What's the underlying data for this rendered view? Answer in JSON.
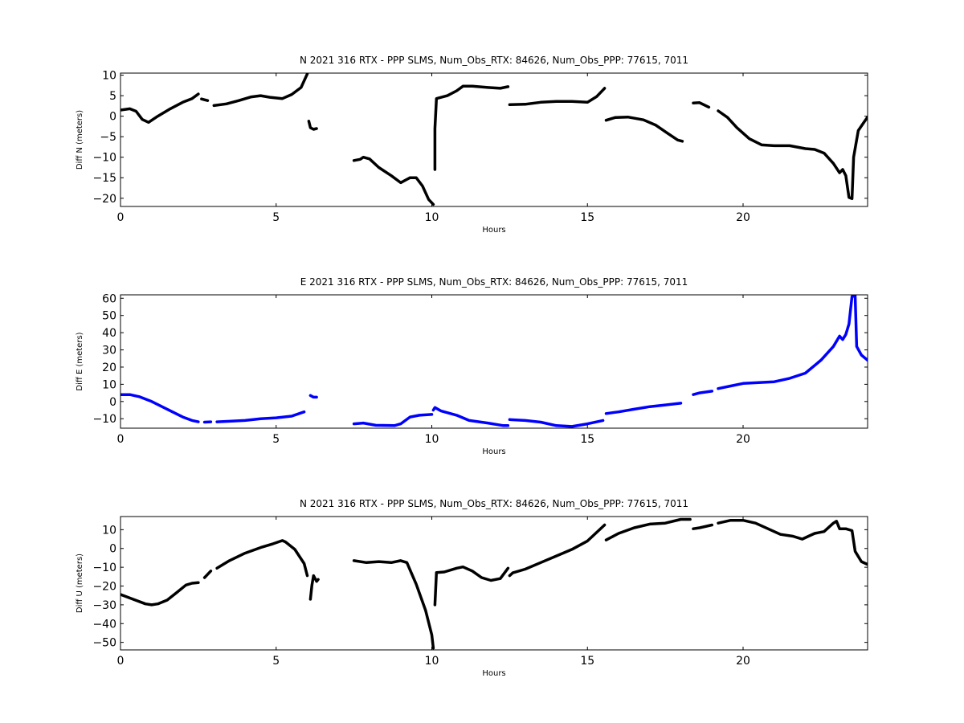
{
  "chart_data": [
    {
      "type": "scatter",
      "title": "N 2021 316 RTX - PPP  SLMS, Num_Obs_RTX: 84626, Num_Obs_PPP: 77615, 7011",
      "xlabel": "Hours",
      "ylabel": "Diff N (meters)",
      "xlim": [
        0,
        24
      ],
      "ylim": [
        -22,
        10.5
      ],
      "xticks": [
        0,
        5,
        10,
        15,
        20
      ],
      "yticks": [
        10,
        5,
        0,
        -5,
        -10,
        -15,
        -20
      ],
      "grid": false,
      "color": "#000000",
      "segments": [
        [
          [
            0,
            1.5
          ],
          [
            0.3,
            1.8
          ],
          [
            0.5,
            1.2
          ],
          [
            0.7,
            -0.8
          ],
          [
            0.9,
            -1.5
          ],
          [
            1.2,
            0
          ],
          [
            1.6,
            1.8
          ],
          [
            2.0,
            3.4
          ],
          [
            2.3,
            4.3
          ],
          [
            2.5,
            5.4
          ]
        ],
        [
          [
            2.6,
            4.2
          ],
          [
            2.8,
            3.8
          ]
        ],
        [
          [
            3.0,
            2.6
          ],
          [
            3.4,
            3.0
          ],
          [
            3.8,
            3.8
          ],
          [
            4.2,
            4.7
          ],
          [
            4.5,
            5.0
          ],
          [
            4.8,
            4.6
          ],
          [
            5.2,
            4.3
          ],
          [
            5.5,
            5.3
          ],
          [
            5.8,
            7.0
          ],
          [
            6.0,
            10.3
          ]
        ],
        [
          [
            6.05,
            -1.2
          ],
          [
            6.1,
            -2.8
          ],
          [
            6.2,
            -3.2
          ],
          [
            6.3,
            -3.0
          ]
        ],
        [
          [
            7.5,
            -10.8
          ],
          [
            7.7,
            -10.5
          ],
          [
            7.8,
            -10.0
          ],
          [
            8.0,
            -10.4
          ],
          [
            8.3,
            -12.5
          ],
          [
            8.7,
            -14.5
          ],
          [
            9.0,
            -16.2
          ],
          [
            9.3,
            -15.0
          ],
          [
            9.5,
            -15.0
          ],
          [
            9.7,
            -17.0
          ],
          [
            9.9,
            -20.3
          ],
          [
            10.05,
            -21.5
          ]
        ],
        [
          [
            10.1,
            -13.0
          ],
          [
            10.1,
            -3.0
          ],
          [
            10.15,
            4.3
          ],
          [
            10.5,
            5.0
          ],
          [
            10.8,
            6.2
          ],
          [
            11.0,
            7.3
          ],
          [
            11.3,
            7.3
          ],
          [
            11.8,
            7.0
          ],
          [
            12.2,
            6.8
          ],
          [
            12.45,
            7.2
          ]
        ],
        [
          [
            12.5,
            2.8
          ],
          [
            13.0,
            2.9
          ],
          [
            13.5,
            3.4
          ],
          [
            14.0,
            3.6
          ],
          [
            14.5,
            3.6
          ],
          [
            15.0,
            3.4
          ],
          [
            15.3,
            4.8
          ],
          [
            15.55,
            6.8
          ]
        ],
        [
          [
            15.6,
            -1.0
          ],
          [
            15.9,
            -0.3
          ],
          [
            16.3,
            -0.2
          ],
          [
            16.8,
            -0.9
          ],
          [
            17.2,
            -2.2
          ],
          [
            17.6,
            -4.3
          ],
          [
            17.9,
            -5.8
          ],
          [
            18.05,
            -6.1
          ]
        ],
        [
          [
            18.4,
            3.2
          ],
          [
            18.6,
            3.3
          ],
          [
            18.9,
            2.2
          ]
        ],
        [
          [
            19.2,
            1.3
          ],
          [
            19.5,
            -0.3
          ],
          [
            19.8,
            -2.8
          ],
          [
            20.2,
            -5.5
          ],
          [
            20.6,
            -7.0
          ],
          [
            21.0,
            -7.2
          ],
          [
            21.5,
            -7.2
          ],
          [
            22.0,
            -7.9
          ],
          [
            22.3,
            -8.1
          ],
          [
            22.6,
            -9.0
          ],
          [
            22.9,
            -11.5
          ],
          [
            23.1,
            -13.8
          ],
          [
            23.2,
            -13.0
          ],
          [
            23.3,
            -14.5
          ],
          [
            23.4,
            -19.8
          ],
          [
            23.5,
            -20.1
          ],
          [
            23.55,
            -10.0
          ],
          [
            23.7,
            -3.5
          ],
          [
            23.9,
            -1.3
          ],
          [
            24.0,
            -0.2
          ]
        ]
      ]
    },
    {
      "type": "scatter",
      "title": "E 2021 316 RTX - PPP  SLMS, Num_Obs_RTX: 84626, Num_Obs_PPP: 77615, 7011",
      "xlabel": "Hours",
      "ylabel": "Diff E (meters)",
      "xlim": [
        0,
        24
      ],
      "ylim": [
        -15.5,
        62
      ],
      "xticks": [
        0,
        5,
        10,
        15,
        20
      ],
      "yticks": [
        60,
        50,
        40,
        30,
        20,
        10,
        0,
        -10
      ],
      "grid": false,
      "color": "#0000ff",
      "segments": [
        [
          [
            0,
            4.0
          ],
          [
            0.3,
            4.0
          ],
          [
            0.6,
            2.8
          ],
          [
            1.0,
            0
          ],
          [
            1.5,
            -4.5
          ],
          [
            2.0,
            -9.0
          ],
          [
            2.3,
            -11.0
          ],
          [
            2.5,
            -11.8
          ]
        ],
        [
          [
            2.7,
            -12.0
          ],
          [
            2.9,
            -11.8
          ]
        ],
        [
          [
            3.1,
            -11.8
          ],
          [
            3.5,
            -11.5
          ],
          [
            4.0,
            -11.0
          ],
          [
            4.5,
            -10.0
          ],
          [
            5.0,
            -9.5
          ],
          [
            5.5,
            -8.5
          ],
          [
            5.9,
            -6.0
          ]
        ],
        [
          [
            6.1,
            3.5
          ],
          [
            6.2,
            2.5
          ],
          [
            6.3,
            2.5
          ]
        ],
        [
          [
            7.5,
            -13.0
          ],
          [
            7.8,
            -12.5
          ],
          [
            8.2,
            -13.8
          ],
          [
            8.8,
            -14.0
          ],
          [
            9.0,
            -13.0
          ],
          [
            9.3,
            -9.0
          ],
          [
            9.6,
            -8.0
          ],
          [
            10.0,
            -7.5
          ]
        ],
        [
          [
            10.05,
            -5.0
          ],
          [
            10.1,
            -3.5
          ],
          [
            10.3,
            -5.5
          ],
          [
            10.8,
            -8.0
          ],
          [
            11.2,
            -11.0
          ],
          [
            11.8,
            -12.5
          ],
          [
            12.3,
            -14.0
          ],
          [
            12.45,
            -14.0
          ]
        ],
        [
          [
            12.5,
            -10.5
          ],
          [
            13.0,
            -11.0
          ],
          [
            13.5,
            -12.0
          ],
          [
            14.0,
            -14.0
          ],
          [
            14.5,
            -14.5
          ],
          [
            15.0,
            -13.0
          ],
          [
            15.5,
            -11.0
          ]
        ],
        [
          [
            15.6,
            -7.0
          ],
          [
            16.0,
            -6.0
          ],
          [
            16.5,
            -4.5
          ],
          [
            17.0,
            -3.0
          ],
          [
            17.5,
            -2.0
          ],
          [
            18.0,
            -1.0
          ]
        ],
        [
          [
            18.4,
            4.0
          ],
          [
            18.6,
            5.0
          ],
          [
            19.0,
            6.0
          ]
        ],
        [
          [
            19.2,
            7.5
          ],
          [
            19.6,
            9.0
          ],
          [
            20.0,
            10.5
          ],
          [
            20.5,
            11.0
          ],
          [
            21.0,
            11.5
          ],
          [
            21.5,
            13.5
          ],
          [
            22.0,
            16.5
          ],
          [
            22.5,
            24.0
          ],
          [
            22.9,
            32.0
          ],
          [
            23.1,
            38.0
          ],
          [
            23.2,
            36.0
          ],
          [
            23.3,
            39.0
          ],
          [
            23.4,
            45.0
          ],
          [
            23.5,
            61.0
          ],
          [
            23.6,
            61.5
          ],
          [
            23.65,
            32.0
          ],
          [
            23.8,
            27.0
          ],
          [
            24.0,
            24.0
          ]
        ]
      ]
    },
    {
      "type": "scatter",
      "title": "N 2021 316 RTX - PPP  SLMS, Num_Obs_RTX: 84626, Num_Obs_PPP: 77615, 7011",
      "xlabel": "Hours",
      "ylabel": "Diff U (meters)",
      "xlim": [
        0,
        24
      ],
      "ylim": [
        -54,
        17
      ],
      "xticks": [
        0,
        5,
        10,
        15,
        20
      ],
      "yticks": [
        10,
        0,
        -10,
        -20,
        -30,
        -40,
        -50
      ],
      "grid": false,
      "color": "#000000",
      "segments": [
        [
          [
            0,
            -24.5
          ],
          [
            0.4,
            -27.0
          ],
          [
            0.8,
            -29.5
          ],
          [
            1.0,
            -30.0
          ],
          [
            1.2,
            -29.5
          ],
          [
            1.5,
            -27.5
          ],
          [
            1.8,
            -23.5
          ],
          [
            2.1,
            -19.5
          ],
          [
            2.3,
            -18.5
          ],
          [
            2.5,
            -18.2
          ]
        ],
        [
          [
            2.7,
            -15.5
          ],
          [
            2.9,
            -12.0
          ]
        ],
        [
          [
            3.1,
            -10.5
          ],
          [
            3.5,
            -6.5
          ],
          [
            4.0,
            -2.5
          ],
          [
            4.5,
            0.5
          ],
          [
            4.9,
            2.5
          ],
          [
            5.2,
            4.2
          ],
          [
            5.3,
            3.5
          ],
          [
            5.6,
            -0.5
          ],
          [
            5.9,
            -8.0
          ],
          [
            6.0,
            -14.5
          ]
        ],
        [
          [
            6.1,
            -27.0
          ],
          [
            6.15,
            -19.5
          ],
          [
            6.2,
            -14.5
          ],
          [
            6.3,
            -17.5
          ],
          [
            6.35,
            -16.5
          ]
        ],
        [
          [
            7.5,
            -6.5
          ],
          [
            7.9,
            -7.5
          ],
          [
            8.3,
            -7.0
          ],
          [
            8.7,
            -7.5
          ],
          [
            9.0,
            -6.5
          ],
          [
            9.2,
            -7.5
          ],
          [
            9.5,
            -19.0
          ],
          [
            9.8,
            -33.0
          ],
          [
            10.0,
            -46.0
          ],
          [
            10.05,
            -53.0
          ]
        ],
        [
          [
            10.1,
            -30.0
          ],
          [
            10.15,
            -12.8
          ],
          [
            10.4,
            -12.5
          ],
          [
            10.8,
            -10.5
          ],
          [
            11.0,
            -9.8
          ],
          [
            11.3,
            -12.0
          ],
          [
            11.6,
            -15.5
          ],
          [
            11.9,
            -17.0
          ],
          [
            12.2,
            -16.0
          ],
          [
            12.45,
            -10.5
          ]
        ],
        [
          [
            12.5,
            -14.5
          ],
          [
            12.6,
            -13.0
          ],
          [
            13.0,
            -11.0
          ],
          [
            13.5,
            -7.5
          ],
          [
            14.0,
            -4.0
          ],
          [
            14.5,
            -0.5
          ],
          [
            15.0,
            4.0
          ],
          [
            15.55,
            12.5
          ]
        ],
        [
          [
            15.6,
            4.5
          ],
          [
            16.0,
            8.0
          ],
          [
            16.5,
            11.0
          ],
          [
            17.0,
            13.0
          ],
          [
            17.5,
            13.5
          ],
          [
            18.0,
            15.5
          ],
          [
            18.3,
            15.5
          ]
        ],
        [
          [
            18.4,
            10.5
          ],
          [
            18.6,
            11.0
          ],
          [
            19.0,
            12.5
          ]
        ],
        [
          [
            19.2,
            13.5
          ],
          [
            19.6,
            15.0
          ],
          [
            20.0,
            15.0
          ],
          [
            20.4,
            13.5
          ],
          [
            20.8,
            10.5
          ],
          [
            21.2,
            7.5
          ],
          [
            21.6,
            6.5
          ],
          [
            21.9,
            5.0
          ],
          [
            22.1,
            6.5
          ],
          [
            22.3,
            8.0
          ],
          [
            22.6,
            9.0
          ],
          [
            22.9,
            13.5
          ],
          [
            23.0,
            14.5
          ],
          [
            23.1,
            10.5
          ],
          [
            23.3,
            10.5
          ],
          [
            23.5,
            9.5
          ],
          [
            23.6,
            -1.5
          ],
          [
            23.8,
            -7.0
          ],
          [
            24.0,
            -8.5
          ]
        ]
      ]
    }
  ]
}
